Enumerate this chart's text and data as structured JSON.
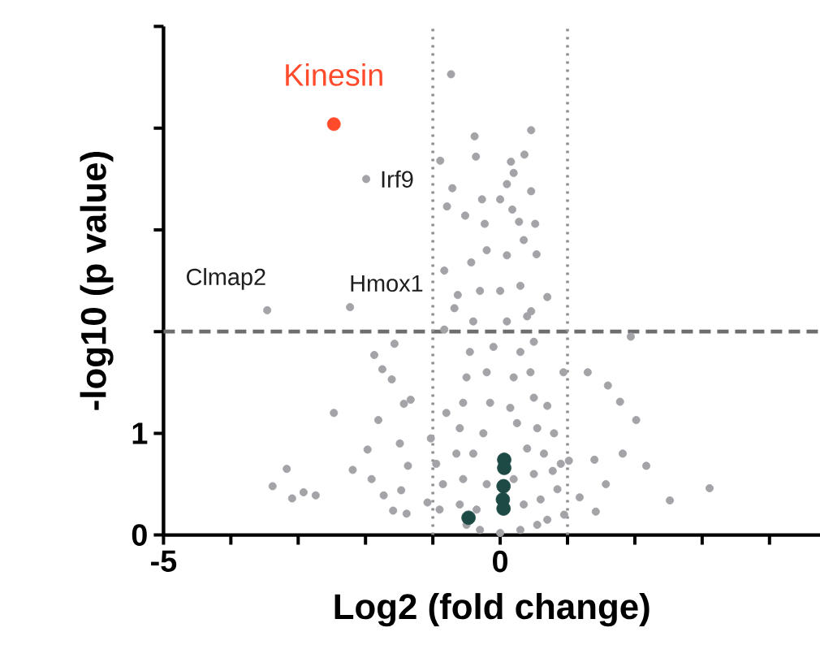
{
  "chart_data": {
    "type": "scatter",
    "xlabel": "Log2 (fold change)",
    "ylabel": "-log10 (p value)",
    "marker": "circle",
    "xlim": [
      -5,
      4.75
    ],
    "ylim": [
      0,
      5
    ],
    "xticks": [
      -5,
      {
        "value": -4,
        "label": null
      },
      {
        "value": -3,
        "label": null
      },
      {
        "value": -2,
        "label": null
      },
      {
        "value": -1,
        "label": null
      },
      0,
      {
        "value": 1,
        "label": null
      },
      {
        "value": 2,
        "label": null
      },
      {
        "value": 3,
        "label": null
      },
      {
        "value": 4,
        "label": null
      }
    ],
    "yticks": [
      0,
      1,
      {
        "value": 2,
        "label": null
      },
      {
        "value": 3,
        "label": null
      },
      {
        "value": 4,
        "label": null
      },
      {
        "value": 5,
        "label": null
      }
    ],
    "series": [
      {
        "color": "#a3a3a8",
        "x": [
          -1.99,
          -3.46,
          -2.23,
          -0.73,
          0.46,
          -0.38,
          -0.36,
          0.36,
          -0.89,
          0.16,
          0.2,
          -0.71,
          0.46,
          -0.79,
          -0.27,
          0.18,
          -0.52,
          -0.23,
          0.52,
          0.28,
          -0.83,
          0.54,
          -0.43,
          -0.63,
          0.7,
          -0.68,
          0.46,
          1.94,
          -0.83,
          -1.87,
          -1.57,
          -1.75,
          -1.61,
          -2.47,
          -1.81,
          -1.33,
          -1.43,
          -1.97,
          -1.49,
          -3.17,
          -3.38,
          -3.09,
          -2.92,
          -2.74,
          -2.19,
          -1.91,
          -1.73,
          -1.59,
          -1.39,
          -1.47,
          -1.37,
          -1.08,
          -1.03,
          1.6,
          1.78,
          1.3,
          2.02,
          1.82,
          2.17,
          1.4,
          1.57,
          3.11,
          2.52,
          1.42,
          1.18,
          1.02,
          0.94,
          0.7,
          0.78,
          0.7,
          -0.5,
          -0.3,
          0,
          0.3,
          0.55,
          -0.6,
          -0.35,
          0.35,
          0.6,
          -0.55,
          -0.2,
          0.2,
          0.5,
          -0.65,
          -0.4,
          0.4,
          0.65,
          -0.6,
          -0.25,
          0.25,
          0.55,
          -0.55,
          -0.15,
          0.15,
          0.5,
          -0.5,
          -0.2,
          0.2,
          0.45,
          -0.45,
          -0.1,
          0.3,
          0.5,
          -0.4,
          0.1,
          0.4,
          -0.3,
          0,
          0.3,
          -0.2,
          0.1,
          0.35,
          0,
          0.1,
          -0.85,
          -0.9,
          0.85,
          0.95,
          -0.8,
          0.8,
          0.9,
          -0.95
        ],
        "values": [
          3.5,
          2.21,
          2.24,
          4.53,
          3.98,
          3.92,
          3.72,
          3.74,
          3.68,
          3.67,
          3.56,
          3.41,
          3.38,
          3.23,
          3.3,
          3.2,
          3.14,
          3.06,
          3.06,
          3.08,
          2.6,
          2.76,
          2.68,
          2.36,
          2.34,
          2.23,
          2.2,
          1.95,
          2.02,
          1.77,
          1.88,
          1.63,
          1.53,
          1.2,
          1.13,
          1.33,
          1.29,
          0.84,
          0.9,
          0.65,
          0.48,
          0.36,
          0.42,
          0.39,
          0.64,
          0.55,
          0.39,
          0.24,
          0.21,
          0.44,
          0.68,
          0.32,
          0.95,
          1.47,
          1.31,
          1.6,
          1.13,
          0.8,
          0.68,
          0.74,
          0.5,
          0.46,
          0.34,
          0.23,
          0.37,
          0.73,
          1.6,
          1.27,
          0.63,
          0.15,
          0.1,
          0.05,
          0.02,
          0.05,
          0.1,
          0.3,
          0.25,
          0.3,
          0.35,
          0.55,
          0.5,
          0.55,
          0.6,
          0.8,
          0.8,
          0.85,
          0.8,
          1.05,
          1,
          1.1,
          1.05,
          1.3,
          1.3,
          1.25,
          1.35,
          1.55,
          1.6,
          1.55,
          1.6,
          1.8,
          1.85,
          1.8,
          1.9,
          2.1,
          2.1,
          2.15,
          2.4,
          2.4,
          2.45,
          2.8,
          2.75,
          2.9,
          3.3,
          3.45,
          0.5,
          0.25,
          0.45,
          0.2,
          1.2,
          1,
          0.7,
          0.7
        ]
      },
      {
        "color": "#1d4a45",
        "x": [
          0.06,
          0.06,
          0.05,
          0.04,
          0.05,
          -0.47
        ],
        "values": [
          0.74,
          0.66,
          0.48,
          0.35,
          0.26,
          0.17
        ]
      },
      {
        "name": "Kinesin",
        "color": "#ff4b2b",
        "x": [
          -2.47
        ],
        "values": [
          4.04
        ]
      }
    ],
    "ref_lines": [
      {
        "axis": "y",
        "value": 2,
        "color": "#6e6e6e",
        "line_style": "dashed"
      },
      {
        "axis": "x",
        "value": -1,
        "color": "#909090",
        "line_style": "dotted"
      },
      {
        "axis": "x",
        "value": 1,
        "color": "#909090",
        "line_style": "dotted"
      }
    ],
    "annotations": [
      {
        "text": "Irf9",
        "x": -1.99,
        "y": 3.5
      },
      {
        "text": "Clmap2",
        "x": -3.46,
        "y": 2.21
      },
      {
        "text": "Hmox1",
        "x": -2.23,
        "y": 2.24
      }
    ]
  }
}
